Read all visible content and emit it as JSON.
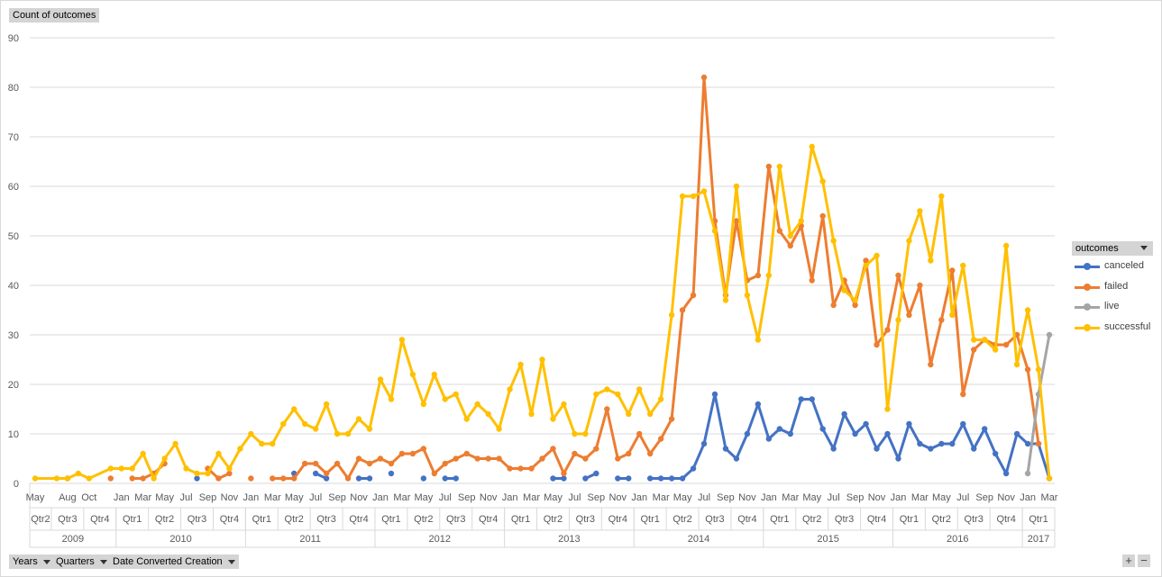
{
  "value_field_button": "Count of outcomes",
  "axis_field_buttons": [
    "Years",
    "Quarters",
    "Date Converted Creation"
  ],
  "legend_field_button": "outcomes",
  "zoom_buttons": [
    "+",
    "−"
  ],
  "chart_data": {
    "type": "line",
    "ylim": [
      0,
      90
    ],
    "yticks": [
      0,
      10,
      20,
      30,
      40,
      50,
      60,
      70,
      80,
      90
    ],
    "grid": true,
    "legend_position": "right",
    "x_month_labels": [
      "May",
      "Aug",
      "Oct",
      "Jan",
      "Mar",
      "May",
      "Jul",
      "Sep",
      "Nov",
      "Jan",
      "Mar",
      "May",
      "Jul",
      "Sep",
      "Nov",
      "Jan",
      "Mar",
      "May",
      "Jul",
      "Sep",
      "Nov",
      "Jan",
      "Mar",
      "May",
      "Jul",
      "Sep",
      "Nov",
      "Jan",
      "Mar",
      "May",
      "Jul",
      "Sep",
      "Nov",
      "Jan",
      "Mar",
      "May",
      "Jul",
      "Sep",
      "Nov",
      "Jan",
      "Mar",
      "May",
      "Jul",
      "Sep",
      "Nov",
      "Jan",
      "Mar"
    ],
    "x_quarters": [
      {
        "year": "2009",
        "quarters": [
          "Qtr2",
          "Qtr3",
          "Qtr4"
        ]
      },
      {
        "year": "2010",
        "quarters": [
          "Qtr1",
          "Qtr2",
          "Qtr3",
          "Qtr4"
        ]
      },
      {
        "year": "2011",
        "quarters": [
          "Qtr1",
          "Qtr2",
          "Qtr3",
          "Qtr4"
        ]
      },
      {
        "year": "2012",
        "quarters": [
          "Qtr1",
          "Qtr2",
          "Qtr3",
          "Qtr4"
        ]
      },
      {
        "year": "2013",
        "quarters": [
          "Qtr1",
          "Qtr2",
          "Qtr3",
          "Qtr4"
        ]
      },
      {
        "year": "2014",
        "quarters": [
          "Qtr1",
          "Qtr2",
          "Qtr3",
          "Qtr4"
        ]
      },
      {
        "year": "2015",
        "quarters": [
          "Qtr1",
          "Qtr2",
          "Qtr3",
          "Qtr4"
        ]
      },
      {
        "year": "2016",
        "quarters": [
          "Qtr1",
          "Qtr2",
          "Qtr3",
          "Qtr4"
        ]
      },
      {
        "year": "2017",
        "quarters": [
          "Qtr1"
        ]
      }
    ],
    "x": [
      "2009-05",
      "2009-07",
      "2009-08",
      "2009-09",
      "2009-10",
      "2009-12",
      "2010-01",
      "2010-02",
      "2010-03",
      "2010-04",
      "2010-05",
      "2010-06",
      "2010-07",
      "2010-08",
      "2010-09",
      "2010-10",
      "2010-11",
      "2010-12",
      "2011-01",
      "2011-02",
      "2011-03",
      "2011-04",
      "2011-05",
      "2011-06",
      "2011-07",
      "2011-08",
      "2011-09",
      "2011-10",
      "2011-11",
      "2011-12",
      "2012-01",
      "2012-02",
      "2012-03",
      "2012-04",
      "2012-05",
      "2012-06",
      "2012-07",
      "2012-08",
      "2012-09",
      "2012-10",
      "2012-11",
      "2012-12",
      "2013-01",
      "2013-02",
      "2013-03",
      "2013-04",
      "2013-05",
      "2013-06",
      "2013-07",
      "2013-08",
      "2013-09",
      "2013-10",
      "2013-11",
      "2013-12",
      "2014-01",
      "2014-02",
      "2014-03",
      "2014-04",
      "2014-05",
      "2014-06",
      "2014-07",
      "2014-08",
      "2014-09",
      "2014-10",
      "2014-11",
      "2014-12",
      "2015-01",
      "2015-02",
      "2015-03",
      "2015-04",
      "2015-05",
      "2015-06",
      "2015-07",
      "2015-08",
      "2015-09",
      "2015-10",
      "2015-11",
      "2015-12",
      "2016-01",
      "2016-02",
      "2016-03",
      "2016-04",
      "2016-05",
      "2016-06",
      "2016-07",
      "2016-08",
      "2016-09",
      "2016-10",
      "2016-11",
      "2016-12",
      "2017-01",
      "2017-02",
      "2017-03"
    ],
    "series": [
      {
        "name": "canceled",
        "color": "#4472c4",
        "values": [
          null,
          null,
          1,
          null,
          null,
          null,
          null,
          null,
          null,
          null,
          null,
          null,
          null,
          1,
          null,
          null,
          null,
          null,
          null,
          null,
          null,
          null,
          2,
          null,
          2,
          1,
          null,
          null,
          1,
          1,
          null,
          2,
          null,
          null,
          1,
          null,
          1,
          1,
          null,
          null,
          null,
          null,
          null,
          null,
          null,
          null,
          1,
          1,
          null,
          1,
          2,
          null,
          1,
          1,
          null,
          1,
          1,
          1,
          1,
          3,
          8,
          18,
          7,
          5,
          10,
          16,
          9,
          11,
          10,
          17,
          17,
          11,
          7,
          14,
          10,
          12,
          7,
          10,
          5,
          12,
          8,
          7,
          8,
          8,
          12,
          7,
          11,
          6,
          2,
          10,
          8,
          8,
          1
        ]
      },
      {
        "name": "failed",
        "color": "#ed7d31",
        "values": [
          null,
          null,
          null,
          null,
          null,
          1,
          null,
          1,
          1,
          2,
          4,
          null,
          null,
          null,
          3,
          1,
          2,
          null,
          1,
          null,
          1,
          1,
          1,
          4,
          4,
          2,
          4,
          1,
          5,
          4,
          5,
          4,
          6,
          6,
          7,
          2,
          4,
          5,
          6,
          5,
          5,
          5,
          3,
          3,
          3,
          5,
          7,
          2,
          6,
          5,
          7,
          15,
          5,
          6,
          10,
          6,
          9,
          13,
          35,
          38,
          82,
          53,
          38,
          53,
          41,
          42,
          64,
          51,
          48,
          52,
          41,
          54,
          36,
          41,
          36,
          45,
          28,
          31,
          42,
          34,
          40,
          24,
          33,
          43,
          18,
          27,
          29,
          28,
          28,
          30,
          23,
          8,
          null
        ]
      },
      {
        "name": "live",
        "color": "#a5a5a5",
        "values": [
          null,
          null,
          null,
          null,
          null,
          null,
          null,
          null,
          null,
          null,
          null,
          null,
          null,
          null,
          null,
          null,
          null,
          null,
          null,
          null,
          null,
          null,
          null,
          null,
          null,
          null,
          null,
          null,
          null,
          null,
          null,
          null,
          null,
          null,
          null,
          null,
          null,
          null,
          null,
          null,
          null,
          null,
          null,
          null,
          null,
          null,
          null,
          null,
          null,
          null,
          null,
          null,
          null,
          null,
          null,
          null,
          null,
          null,
          null,
          null,
          null,
          null,
          null,
          null,
          null,
          null,
          null,
          null,
          null,
          null,
          null,
          null,
          null,
          null,
          null,
          null,
          null,
          null,
          null,
          null,
          null,
          null,
          null,
          null,
          null,
          null,
          null,
          null,
          null,
          null,
          2,
          18,
          30
        ]
      },
      {
        "name": "successful",
        "color": "#ffc000",
        "values": [
          1,
          1,
          1,
          2,
          1,
          3,
          3,
          3,
          6,
          1,
          5,
          8,
          3,
          2,
          2,
          6,
          3,
          7,
          10,
          8,
          8,
          12,
          15,
          12,
          11,
          16,
          10,
          10,
          13,
          11,
          21,
          17,
          29,
          22,
          16,
          22,
          17,
          18,
          13,
          16,
          14,
          11,
          19,
          24,
          14,
          25,
          13,
          16,
          10,
          10,
          18,
          19,
          18,
          14,
          19,
          14,
          17,
          34,
          58,
          58,
          59,
          51,
          37,
          60,
          38,
          29,
          42,
          64,
          50,
          53,
          68,
          61,
          49,
          39,
          37,
          44,
          46,
          15,
          33,
          49,
          55,
          45,
          58,
          34,
          44,
          29,
          29,
          27,
          48,
          24,
          35,
          23,
          1
        ]
      }
    ]
  }
}
